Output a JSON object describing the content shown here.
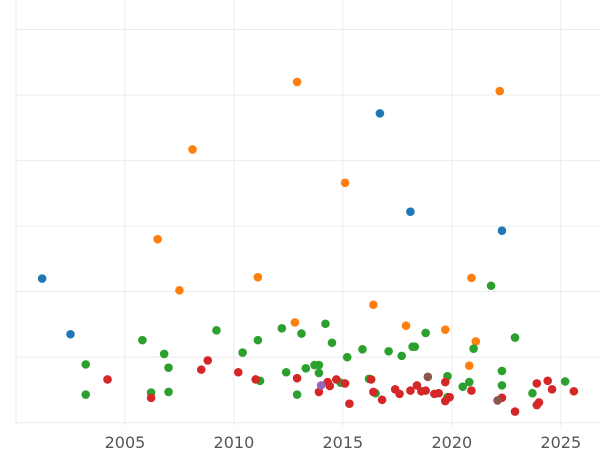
{
  "chart_data": {
    "type": "scatter",
    "title": "",
    "xlabel": "",
    "ylabel": "",
    "xlim": [
      2000.0,
      2026.8
    ],
    "ylim": [
      -0.05,
      6.45
    ],
    "x_ticks": [
      2005,
      2010,
      2015,
      2020,
      2025
    ],
    "x_tick_labels": [
      "2005",
      "2010",
      "2015",
      "2020",
      "2025"
    ],
    "y_gridlines": [
      0,
      1,
      2,
      3,
      4,
      5,
      6
    ],
    "grid": true,
    "legend": "none",
    "series": [
      {
        "color": "#1f77b4",
        "points": [
          [
            2001.2,
            2.2
          ],
          [
            2002.5,
            1.35
          ],
          [
            2016.7,
            4.72
          ],
          [
            2018.1,
            3.22
          ],
          [
            2022.3,
            2.93
          ]
        ]
      },
      {
        "color": "#ff7f0e",
        "points": [
          [
            2006.5,
            2.8
          ],
          [
            2007.5,
            2.02
          ],
          [
            2008.1,
            4.17
          ],
          [
            2011.1,
            2.22
          ],
          [
            2012.8,
            1.53
          ],
          [
            2012.9,
            5.2
          ],
          [
            2015.1,
            3.66
          ],
          [
            2016.4,
            1.8
          ],
          [
            2017.9,
            1.48
          ],
          [
            2019.7,
            1.42
          ],
          [
            2020.8,
            0.87
          ],
          [
            2020.9,
            2.21
          ],
          [
            2021.1,
            1.24
          ],
          [
            2022.2,
            5.06
          ]
        ]
      },
      {
        "color": "#2ca02c",
        "points": [
          [
            2003.2,
            0.89
          ],
          [
            2003.2,
            0.43
          ],
          [
            2005.8,
            1.26
          ],
          [
            2006.2,
            0.46
          ],
          [
            2006.8,
            1.05
          ],
          [
            2007.0,
            0.84
          ],
          [
            2007.0,
            0.47
          ],
          [
            2009.2,
            1.41
          ],
          [
            2010.4,
            1.07
          ],
          [
            2011.1,
            1.26
          ],
          [
            2011.2,
            0.64
          ],
          [
            2012.2,
            1.44
          ],
          [
            2012.4,
            0.77
          ],
          [
            2012.9,
            0.43
          ],
          [
            2013.1,
            1.36
          ],
          [
            2013.3,
            0.83
          ],
          [
            2013.7,
            0.88
          ],
          [
            2013.9,
            0.88
          ],
          [
            2013.9,
            0.76
          ],
          [
            2014.2,
            1.51
          ],
          [
            2014.5,
            1.22
          ],
          [
            2014.9,
            0.61
          ],
          [
            2015.2,
            1.0
          ],
          [
            2015.9,
            1.12
          ],
          [
            2016.2,
            0.67
          ],
          [
            2016.5,
            0.45
          ],
          [
            2017.1,
            1.09
          ],
          [
            2017.7,
            1.02
          ],
          [
            2018.2,
            1.16
          ],
          [
            2018.3,
            1.16
          ],
          [
            2018.8,
            1.37
          ],
          [
            2019.8,
            0.71
          ],
          [
            2019.8,
            0.39
          ],
          [
            2020.5,
            0.55
          ],
          [
            2020.8,
            0.62
          ],
          [
            2021.0,
            1.13
          ],
          [
            2021.8,
            2.09
          ],
          [
            2022.3,
            0.79
          ],
          [
            2022.3,
            0.57
          ],
          [
            2022.9,
            1.3
          ],
          [
            2023.7,
            0.45
          ],
          [
            2025.2,
            0.63
          ]
        ]
      },
      {
        "color": "#d62728",
        "points": [
          [
            2004.2,
            0.66
          ],
          [
            2006.2,
            0.38
          ],
          [
            2008.5,
            0.81
          ],
          [
            2008.8,
            0.95
          ],
          [
            2010.2,
            0.77
          ],
          [
            2011.0,
            0.66
          ],
          [
            2012.9,
            0.68
          ],
          [
            2013.9,
            0.47
          ],
          [
            2014.3,
            0.62
          ],
          [
            2014.4,
            0.56
          ],
          [
            2014.7,
            0.66
          ],
          [
            2015.1,
            0.6
          ],
          [
            2015.3,
            0.29
          ],
          [
            2016.3,
            0.66
          ],
          [
            2016.4,
            0.47
          ],
          [
            2016.8,
            0.35
          ],
          [
            2017.4,
            0.51
          ],
          [
            2017.6,
            0.44
          ],
          [
            2018.1,
            0.49
          ],
          [
            2018.4,
            0.57
          ],
          [
            2018.6,
            0.48
          ],
          [
            2018.8,
            0.49
          ],
          [
            2019.2,
            0.44
          ],
          [
            2019.4,
            0.45
          ],
          [
            2019.7,
            0.62
          ],
          [
            2019.7,
            0.33
          ],
          [
            2019.9,
            0.39
          ],
          [
            2020.9,
            0.49
          ],
          [
            2022.3,
            0.38
          ],
          [
            2022.9,
            0.17
          ],
          [
            2023.9,
            0.6
          ],
          [
            2023.9,
            0.27
          ],
          [
            2024.0,
            0.31
          ],
          [
            2024.4,
            0.64
          ],
          [
            2024.6,
            0.51
          ],
          [
            2025.6,
            0.48
          ]
        ]
      },
      {
        "color": "#9467bd",
        "points": [
          [
            2014.0,
            0.57
          ]
        ]
      },
      {
        "color": "#8c564b",
        "points": [
          [
            2018.9,
            0.7
          ],
          [
            2022.1,
            0.34
          ]
        ]
      }
    ]
  }
}
